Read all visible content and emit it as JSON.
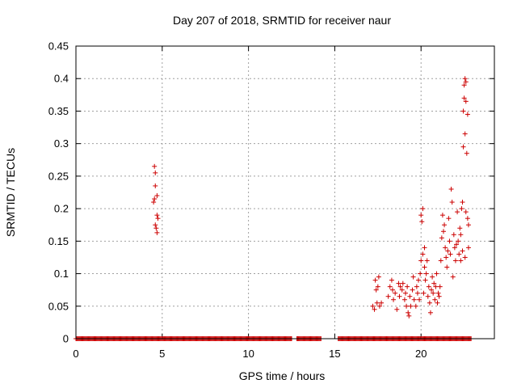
{
  "chart_data": {
    "type": "scatter",
    "title": "Day 207 of 2018, SRMTID for receiver naur",
    "xlabel": "GPS time / hours",
    "ylabel": "SRMTID / TECUs",
    "xlim": [
      0,
      24.25
    ],
    "ylim": [
      0,
      0.45
    ],
    "xticks": [
      0,
      5,
      10,
      15,
      20
    ],
    "xtick_labels": [
      "0",
      "5",
      "10",
      "15",
      "20"
    ],
    "yticks": [
      0,
      0.05,
      0.1,
      0.15,
      0.2,
      0.25,
      0.3,
      0.35,
      0.4,
      0.45
    ],
    "ytick_labels": [
      "0",
      "0.05",
      "0.1",
      "0.15",
      "0.2",
      "0.25",
      "0.3",
      "0.35",
      "0.4",
      "0.45"
    ],
    "grid": true,
    "marker": "+",
    "color": "#cc0000",
    "series": [
      {
        "name": "SRMTID",
        "points": [
          [
            4.55,
            0.265
          ],
          [
            4.6,
            0.255
          ],
          [
            4.6,
            0.235
          ],
          [
            4.55,
            0.215
          ],
          [
            4.5,
            0.21
          ],
          [
            4.7,
            0.22
          ],
          [
            4.6,
            0.175
          ],
          [
            4.7,
            0.19
          ],
          [
            4.75,
            0.185
          ],
          [
            4.65,
            0.17
          ],
          [
            4.7,
            0.163
          ],
          [
            17.2,
            0.05
          ],
          [
            17.3,
            0.045
          ],
          [
            17.35,
            0.09
          ],
          [
            17.4,
            0.075
          ],
          [
            17.45,
            0.055
          ],
          [
            17.5,
            0.08
          ],
          [
            17.55,
            0.095
          ],
          [
            17.6,
            0.05
          ],
          [
            17.7,
            0.055
          ],
          [
            18.1,
            0.065
          ],
          [
            18.2,
            0.08
          ],
          [
            18.3,
            0.09
          ],
          [
            18.35,
            0.075
          ],
          [
            18.4,
            0.06
          ],
          [
            18.5,
            0.07
          ],
          [
            18.6,
            0.045
          ],
          [
            18.7,
            0.085
          ],
          [
            18.75,
            0.065
          ],
          [
            18.8,
            0.08
          ],
          [
            18.9,
            0.075
          ],
          [
            18.95,
            0.085
          ],
          [
            19.05,
            0.06
          ],
          [
            19.1,
            0.07
          ],
          [
            19.15,
            0.05
          ],
          [
            19.2,
            0.08
          ],
          [
            19.25,
            0.04
          ],
          [
            19.3,
            0.035
          ],
          [
            19.35,
            0.065
          ],
          [
            19.4,
            0.05
          ],
          [
            19.5,
            0.075
          ],
          [
            19.55,
            0.095
          ],
          [
            19.6,
            0.06
          ],
          [
            19.7,
            0.05
          ],
          [
            19.75,
            0.08
          ],
          [
            19.8,
            0.07
          ],
          [
            19.85,
            0.09
          ],
          [
            19.9,
            0.06
          ],
          [
            19.95,
            0.1
          ],
          [
            20.0,
            0.12
          ],
          [
            20.0,
            0.19
          ],
          [
            20.05,
            0.18
          ],
          [
            20.1,
            0.2
          ],
          [
            20.1,
            0.13
          ],
          [
            20.15,
            0.07
          ],
          [
            20.2,
            0.14
          ],
          [
            20.2,
            0.11
          ],
          [
            20.25,
            0.09
          ],
          [
            20.3,
            0.1
          ],
          [
            20.35,
            0.12
          ],
          [
            20.4,
            0.065
          ],
          [
            20.45,
            0.08
          ],
          [
            20.5,
            0.055
          ],
          [
            20.55,
            0.04
          ],
          [
            20.6,
            0.075
          ],
          [
            20.65,
            0.095
          ],
          [
            20.7,
            0.07
          ],
          [
            20.75,
            0.085
          ],
          [
            20.8,
            0.06
          ],
          [
            20.85,
            0.08
          ],
          [
            20.9,
            0.1
          ],
          [
            20.95,
            0.055
          ],
          [
            21.0,
            0.07
          ],
          [
            21.05,
            0.065
          ],
          [
            21.1,
            0.08
          ],
          [
            21.15,
            0.12
          ],
          [
            21.2,
            0.155
          ],
          [
            21.25,
            0.19
          ],
          [
            21.3,
            0.165
          ],
          [
            21.35,
            0.175
          ],
          [
            21.4,
            0.14
          ],
          [
            21.45,
            0.125
          ],
          [
            21.5,
            0.11
          ],
          [
            21.55,
            0.135
          ],
          [
            21.6,
            0.185
          ],
          [
            21.65,
            0.15
          ],
          [
            21.7,
            0.13
          ],
          [
            21.75,
            0.23
          ],
          [
            21.8,
            0.21
          ],
          [
            21.85,
            0.095
          ],
          [
            21.9,
            0.16
          ],
          [
            21.95,
            0.14
          ],
          [
            22.0,
            0.12
          ],
          [
            22.05,
            0.145
          ],
          [
            22.1,
            0.195
          ],
          [
            22.15,
            0.15
          ],
          [
            22.2,
            0.13
          ],
          [
            22.25,
            0.17
          ],
          [
            22.3,
            0.16
          ],
          [
            22.35,
            0.2
          ],
          [
            22.4,
            0.21
          ],
          [
            22.45,
            0.35
          ],
          [
            22.45,
            0.295
          ],
          [
            22.5,
            0.37
          ],
          [
            22.5,
            0.39
          ],
          [
            22.55,
            0.4
          ],
          [
            22.55,
            0.315
          ],
          [
            22.6,
            0.395
          ],
          [
            22.6,
            0.365
          ],
          [
            22.65,
            0.285
          ],
          [
            22.7,
            0.345
          ],
          [
            22.7,
            0.185
          ],
          [
            22.75,
            0.175
          ],
          [
            22.75,
            0.14
          ],
          [
            22.55,
            0.125
          ],
          [
            22.4,
            0.135
          ],
          [
            22.3,
            0.12
          ],
          [
            22.6,
            0.195
          ]
        ]
      }
    ],
    "zero_cluster_ranges": [
      [
        0.0,
        12.5
      ],
      [
        12.8,
        14.2
      ],
      [
        15.2,
        22.9
      ]
    ]
  }
}
